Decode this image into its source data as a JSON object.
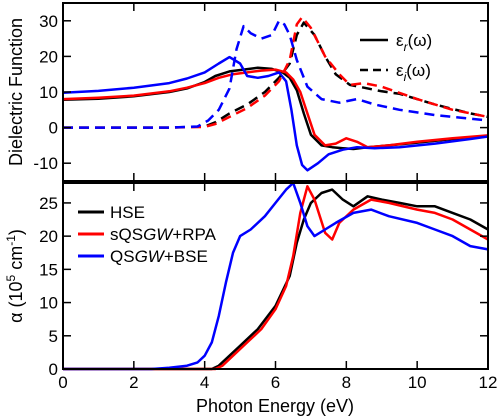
{
  "chart_data": [
    {
      "type": "line",
      "panel": "top",
      "xlabel": "",
      "ylabel": "Dielectric Function",
      "xlim": [
        0,
        12
      ],
      "ylim": [
        -15,
        35
      ],
      "y_ticks": [
        -10,
        0,
        10,
        20,
        30
      ],
      "x_ticks": [
        0,
        2,
        4,
        6,
        8,
        10,
        12
      ],
      "grid": false,
      "legend": {
        "placement": "top-right",
        "entries": [
          {
            "main": "ε",
            "sub": "r",
            "tail": "(ω)",
            "style": "solid"
          },
          {
            "main": "ε",
            "sub": "i",
            "tail": "(ω)",
            "style": "dashed"
          }
        ]
      },
      "series": [
        {
          "method": "HSE",
          "part": "real",
          "style": "solid",
          "color": "#000000",
          "points": [
            [
              0,
              7.8
            ],
            [
              1,
              8.1
            ],
            [
              2,
              8.8
            ],
            [
              3,
              10.0
            ],
            [
              3.5,
              11.0
            ],
            [
              4.0,
              12.8
            ],
            [
              4.3,
              14.5
            ],
            [
              4.7,
              15.8
            ],
            [
              5.1,
              16.3
            ],
            [
              5.5,
              16.8
            ],
            [
              5.9,
              16.5
            ],
            [
              6.2,
              15.5
            ],
            [
              6.4,
              14.0
            ],
            [
              6.6,
              10.5
            ],
            [
              6.8,
              4.0
            ],
            [
              7.0,
              -2.0
            ],
            [
              7.3,
              -5.0
            ],
            [
              7.6,
              -5.5
            ],
            [
              7.9,
              -5.8
            ],
            [
              8.2,
              -6.0
            ],
            [
              8.6,
              -5.5
            ],
            [
              9.2,
              -5.0
            ],
            [
              10,
              -4.2
            ],
            [
              11,
              -3.2
            ],
            [
              12,
              -2.5
            ]
          ]
        },
        {
          "method": "sQSGW+RPA",
          "part": "real",
          "style": "solid",
          "color": "#ff0000",
          "points": [
            [
              0,
              8.0
            ],
            [
              1,
              8.4
            ],
            [
              2,
              9.0
            ],
            [
              3,
              10.2
            ],
            [
              3.5,
              11.2
            ],
            [
              4.0,
              12.5
            ],
            [
              4.4,
              14.0
            ],
            [
              4.8,
              15.0
            ],
            [
              5.2,
              15.5
            ],
            [
              5.6,
              16.0
            ],
            [
              6.0,
              16.3
            ],
            [
              6.3,
              15.5
            ],
            [
              6.5,
              13.5
            ],
            [
              6.7,
              10.0
            ],
            [
              6.9,
              4.0
            ],
            [
              7.1,
              -2.0
            ],
            [
              7.4,
              -5.0
            ],
            [
              7.7,
              -4.5
            ],
            [
              8.0,
              -3.0
            ],
            [
              8.3,
              -4.0
            ],
            [
              8.6,
              -5.5
            ],
            [
              9.2,
              -5.0
            ],
            [
              10,
              -4.0
            ],
            [
              11,
              -3.0
            ],
            [
              12,
              -2.2
            ]
          ]
        },
        {
          "method": "QSGW+BSE",
          "part": "real",
          "style": "solid",
          "color": "#0000ff",
          "points": [
            [
              0,
              9.8
            ],
            [
              1,
              10.3
            ],
            [
              2,
              11.2
            ],
            [
              3,
              12.5
            ],
            [
              3.5,
              13.8
            ],
            [
              4.0,
              15.5
            ],
            [
              4.4,
              18.0
            ],
            [
              4.7,
              19.8
            ],
            [
              5.0,
              18.0
            ],
            [
              5.2,
              14.5
            ],
            [
              5.5,
              14.0
            ],
            [
              5.8,
              14.5
            ],
            [
              6.1,
              15.5
            ],
            [
              6.3,
              13.0
            ],
            [
              6.45,
              5.0
            ],
            [
              6.6,
              -5.0
            ],
            [
              6.75,
              -10.5
            ],
            [
              6.9,
              -12.0
            ],
            [
              7.2,
              -10.0
            ],
            [
              7.5,
              -7.5
            ],
            [
              7.9,
              -6.2
            ],
            [
              8.3,
              -5.5
            ],
            [
              8.8,
              -5.8
            ],
            [
              9.5,
              -5.5
            ],
            [
              10.5,
              -4.5
            ],
            [
              11.5,
              -3.2
            ],
            [
              12,
              -2.5
            ]
          ]
        },
        {
          "method": "HSE",
          "part": "imaginary",
          "style": "dashed",
          "color": "#000000",
          "points": [
            [
              0,
              0
            ],
            [
              3,
              0
            ],
            [
              4.0,
              0.3
            ],
            [
              4.3,
              1.5
            ],
            [
              4.7,
              4.0
            ],
            [
              5.2,
              6.5
            ],
            [
              5.7,
              10.0
            ],
            [
              6.1,
              14.0
            ],
            [
              6.4,
              18.0
            ],
            [
              6.6,
              26.0
            ],
            [
              6.8,
              29.5
            ],
            [
              7.1,
              26.0
            ],
            [
              7.4,
              20.0
            ],
            [
              7.7,
              15.0
            ],
            [
              8.1,
              12.0
            ],
            [
              8.5,
              11.2
            ],
            [
              9.0,
              10.2
            ],
            [
              9.5,
              9.5
            ],
            [
              10.5,
              6.5
            ],
            [
              11.5,
              4.0
            ],
            [
              12,
              3.0
            ]
          ]
        },
        {
          "method": "sQSGW+RPA",
          "part": "imaginary",
          "style": "dashed",
          "color": "#ff0000",
          "points": [
            [
              0,
              0
            ],
            [
              3,
              0
            ],
            [
              4.0,
              0.2
            ],
            [
              4.3,
              1.0
            ],
            [
              4.7,
              3.0
            ],
            [
              5.2,
              5.5
            ],
            [
              5.7,
              9.0
            ],
            [
              6.1,
              13.0
            ],
            [
              6.4,
              19.0
            ],
            [
              6.6,
              29.0
            ],
            [
              6.75,
              31.0
            ],
            [
              7.0,
              28.0
            ],
            [
              7.4,
              20.0
            ],
            [
              7.8,
              15.0
            ],
            [
              8.1,
              12.0
            ],
            [
              8.5,
              12.5
            ],
            [
              9.0,
              11.5
            ],
            [
              10,
              8.0
            ],
            [
              11,
              5.0
            ],
            [
              12,
              3.0
            ]
          ]
        },
        {
          "method": "QSGW+BSE",
          "part": "imaginary",
          "style": "dashed",
          "color": "#0000ff",
          "points": [
            [
              0,
              0
            ],
            [
              3,
              0
            ],
            [
              3.8,
              0.3
            ],
            [
              4.1,
              2.0
            ],
            [
              4.4,
              5.0
            ],
            [
              4.7,
              11.0
            ],
            [
              4.9,
              22.0
            ],
            [
              5.1,
              28.5
            ],
            [
              5.3,
              26.5
            ],
            [
              5.6,
              25.0
            ],
            [
              5.9,
              26.0
            ],
            [
              6.1,
              30.0
            ],
            [
              6.25,
              29.0
            ],
            [
              6.4,
              26.0
            ],
            [
              6.6,
              19.0
            ],
            [
              6.9,
              11.5
            ],
            [
              7.3,
              8.0
            ],
            [
              7.8,
              7.0
            ],
            [
              8.3,
              8.0
            ],
            [
              8.8,
              6.5
            ],
            [
              9.5,
              5.0
            ],
            [
              10.5,
              3.5
            ],
            [
              11.5,
              2.5
            ],
            [
              12,
              2.0
            ]
          ]
        }
      ]
    },
    {
      "type": "line",
      "panel": "bottom",
      "xlabel": "Photon Energy (eV)",
      "ylabel_main": "α (10",
      "ylabel_exp1": "5",
      "ylabel_mid": " cm",
      "ylabel_exp2": "-1",
      "ylabel_close": ")",
      "xlim": [
        0,
        12
      ],
      "ylim": [
        0,
        28
      ],
      "y_ticks": [
        0,
        5,
        10,
        15,
        20,
        25
      ],
      "x_ticks": [
        0,
        2,
        4,
        6,
        8,
        10,
        12
      ],
      "grid": false,
      "legend": {
        "placement": "top-left",
        "entries": [
          {
            "parts": [
              {
                "t": "HSE",
                "i": false
              }
            ],
            "color": "#000000"
          },
          {
            "parts": [
              {
                "t": "sQS",
                "i": false
              },
              {
                "t": "GW",
                "i": true
              },
              {
                "t": "+RPA",
                "i": false
              }
            ],
            "color": "#ff0000"
          },
          {
            "parts": [
              {
                "t": "QS",
                "i": false
              },
              {
                "t": "GW",
                "i": true
              },
              {
                "t": "+BSE",
                "i": false
              }
            ],
            "color": "#0000ff"
          }
        ]
      },
      "series": [
        {
          "name": "HSE",
          "color": "#000000",
          "points": [
            [
              0,
              0
            ],
            [
              4.2,
              0
            ],
            [
              4.4,
              0.5
            ],
            [
              4.7,
              2.0
            ],
            [
              5.0,
              3.5
            ],
            [
              5.5,
              6.0
            ],
            [
              6.0,
              9.5
            ],
            [
              6.4,
              14.0
            ],
            [
              6.6,
              19.0
            ],
            [
              6.8,
              22.5
            ],
            [
              7.0,
              25.0
            ],
            [
              7.3,
              26.5
            ],
            [
              7.6,
              27.0
            ],
            [
              7.9,
              25.5
            ],
            [
              8.2,
              24.5
            ],
            [
              8.6,
              26.0
            ],
            [
              9.0,
              25.5
            ],
            [
              9.5,
              25.0
            ],
            [
              10,
              24.5
            ],
            [
              10.5,
              24.5
            ],
            [
              11,
              23.5
            ],
            [
              11.5,
              22.5
            ],
            [
              12,
              21.0
            ]
          ]
        },
        {
          "name": "sQSGW+RPA",
          "color": "#ff0000",
          "points": [
            [
              0,
              0
            ],
            [
              4.3,
              0
            ],
            [
              4.5,
              0.5
            ],
            [
              4.8,
              2.0
            ],
            [
              5.2,
              4.0
            ],
            [
              5.6,
              6.0
            ],
            [
              6.0,
              9.0
            ],
            [
              6.3,
              12.5
            ],
            [
              6.5,
              17.0
            ],
            [
              6.7,
              23.5
            ],
            [
              6.9,
              27.5
            ],
            [
              7.1,
              25.5
            ],
            [
              7.4,
              20.5
            ],
            [
              7.6,
              19.5
            ],
            [
              7.8,
              22.0
            ],
            [
              8.2,
              24.0
            ],
            [
              8.7,
              25.5
            ],
            [
              9.2,
              25.0
            ],
            [
              10,
              24.0
            ],
            [
              10.5,
              23.5
            ],
            [
              11,
              22.5
            ],
            [
              11.5,
              21.0
            ],
            [
              12,
              19.5
            ]
          ]
        },
        {
          "name": "QSGW+BSE",
          "color": "#0000ff",
          "points": [
            [
              0,
              0
            ],
            [
              2.5,
              0
            ],
            [
              3.0,
              0.2
            ],
            [
              3.5,
              0.5
            ],
            [
              3.8,
              1.0
            ],
            [
              4.0,
              2.0
            ],
            [
              4.2,
              4.0
            ],
            [
              4.4,
              8.0
            ],
            [
              4.6,
              13.0
            ],
            [
              4.8,
              17.5
            ],
            [
              5.0,
              20.0
            ],
            [
              5.3,
              21.0
            ],
            [
              5.7,
              23.0
            ],
            [
              6.0,
              25.0
            ],
            [
              6.3,
              27.0
            ],
            [
              6.5,
              28.0
            ],
            [
              6.7,
              25.0
            ],
            [
              6.9,
              21.5
            ],
            [
              7.1,
              20.0
            ],
            [
              7.4,
              21.0
            ],
            [
              7.7,
              22.0
            ],
            [
              8.2,
              23.5
            ],
            [
              8.7,
              24.0
            ],
            [
              9.2,
              23.0
            ],
            [
              10,
              22.0
            ],
            [
              10.5,
              21.0
            ],
            [
              11,
              20.0
            ],
            [
              11.5,
              18.5
            ],
            [
              12,
              18.0
            ]
          ]
        }
      ]
    }
  ]
}
